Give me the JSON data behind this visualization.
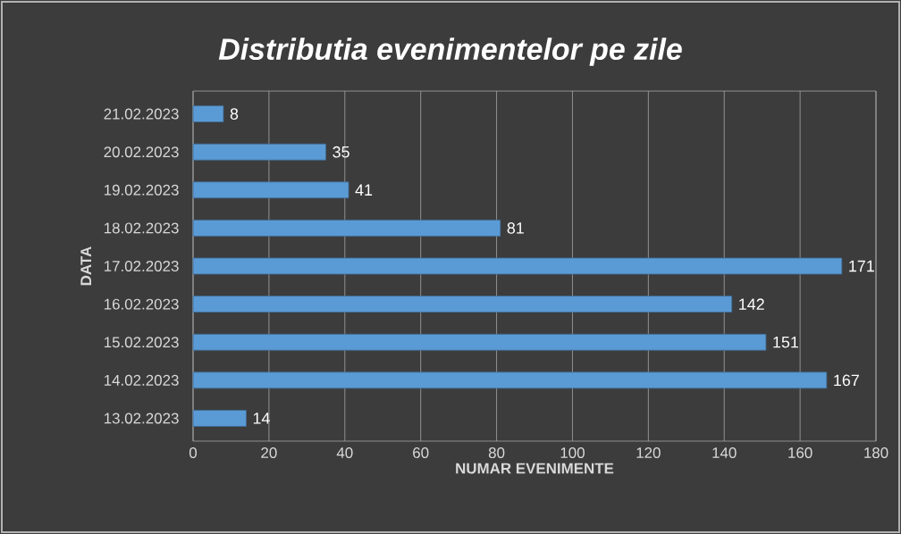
{
  "chart_data": {
    "type": "bar",
    "orientation": "horizontal",
    "title": "*Distributia evenimentelor pe zile*",
    "xlabel": "NUMAR EVENIMENTE",
    "ylabel": "DATA",
    "categories": [
      "21.02.2023",
      "20.02.2023",
      "19.02.2023",
      "18.02.2023",
      "17.02.2023",
      "16.02.2023",
      "15.02.2023",
      "14.02.2023",
      "13.02.2023"
    ],
    "values": [
      8,
      35,
      41,
      81,
      171,
      142,
      151,
      167,
      14
    ],
    "color": "#5b9bd5",
    "xlim": [
      0,
      180
    ],
    "xticks": [
      0,
      20,
      40,
      60,
      80,
      100,
      120,
      140,
      160,
      180
    ],
    "grid": "x",
    "data_labels": true
  }
}
